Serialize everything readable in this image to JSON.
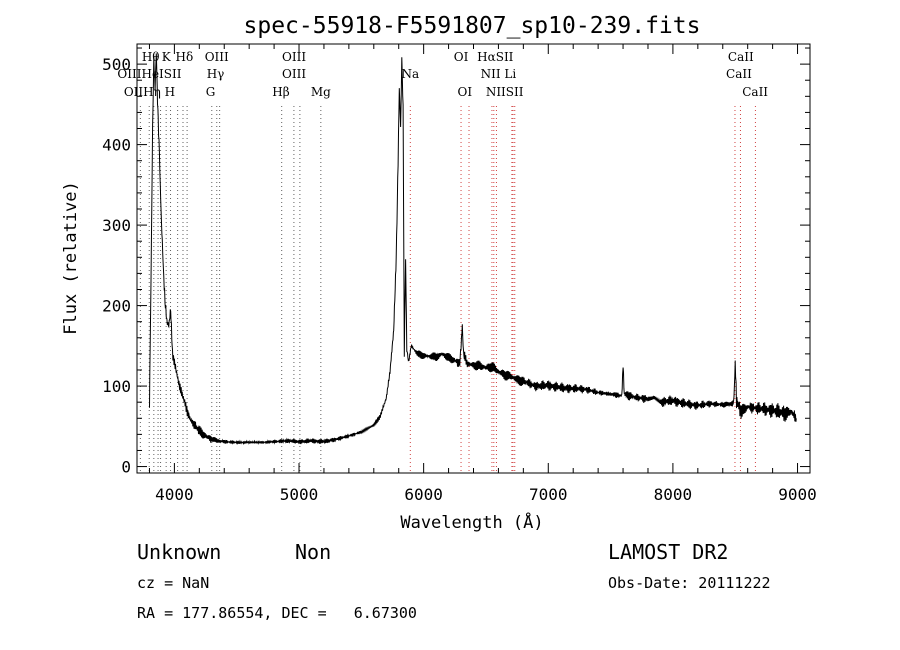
{
  "chart_data": {
    "type": "line",
    "title": "spec-55918-F5591807_sp10-239.fits",
    "xlabel": "Wavelength (Å)",
    "ylabel": "Flux (relative)",
    "xlim": [
      3700,
      9100
    ],
    "ylim": [
      -8,
      525
    ],
    "xticks": [
      4000,
      5000,
      6000,
      7000,
      8000,
      9000
    ],
    "yticks": [
      0,
      100,
      200,
      300,
      400,
      500
    ],
    "grid": false,
    "legend": "none",
    "series": [
      {
        "color": "#000000",
        "x": [
          3800,
          3812,
          3825,
          3835,
          3845,
          3855,
          3862,
          3870,
          3880,
          3890,
          3900,
          3912,
          3925,
          3940,
          3955,
          3970,
          3985,
          4000,
          4020,
          4040,
          4060,
          4080,
          4100,
          4130,
          4160,
          4200,
          4250,
          4300,
          4350,
          4400,
          4500,
          4600,
          4700,
          4800,
          4900,
          5000,
          5100,
          5200,
          5300,
          5400,
          5500,
          5550,
          5600,
          5650,
          5700,
          5730,
          5760,
          5780,
          5795,
          5805,
          5815,
          5825,
          5835,
          5845,
          5855,
          5865,
          5880,
          5900,
          5950,
          6000,
          6050,
          6100,
          6150,
          6200,
          6250,
          6290,
          6300,
          6310,
          6320,
          6350,
          6400,
          6450,
          6500,
          6550,
          6600,
          6650,
          6700,
          6750,
          6800,
          6900,
          7000,
          7100,
          7200,
          7300,
          7400,
          7500,
          7590,
          7600,
          7610,
          7700,
          7800,
          7850,
          7900,
          8000,
          8100,
          8200,
          8300,
          8400,
          8480,
          8490,
          8500,
          8510,
          8550,
          8600,
          8700,
          8800,
          8900,
          8950,
          8990
        ],
        "y": [
          75,
          230,
          420,
          505,
          470,
          515,
          470,
          430,
          390,
          330,
          290,
          245,
          205,
          180,
          175,
          195,
          140,
          130,
          115,
          100,
          90,
          82,
          70,
          58,
          52,
          44,
          38,
          34,
          32,
          31,
          30,
          30,
          30,
          31,
          32,
          31,
          32,
          31,
          34,
          38,
          43,
          47,
          52,
          62,
          85,
          118,
          170,
          260,
          380,
          470,
          420,
          505,
          445,
          140,
          260,
          145,
          130,
          150,
          140,
          138,
          137,
          136,
          140,
          135,
          132,
          128,
          150,
          175,
          140,
          128,
          126,
          125,
          123,
          124,
          118,
          114,
          112,
          108,
          106,
          100,
          101,
          98,
          97,
          96,
          92,
          90,
          88,
          125,
          90,
          86,
          84,
          86,
          80,
          82,
          78,
          76,
          78,
          77,
          78,
          85,
          130,
          82,
          68,
          74,
          72,
          70,
          66,
          68,
          60
        ]
      }
    ],
    "lines": {
      "row1": [
        "Hθ",
        "K",
        "Hδ",
        "OIII",
        "OIII",
        "OI",
        "HαSII",
        "CaII"
      ],
      "row2": [
        "OIIIHeISII",
        "Hγ",
        "OIII",
        "Na",
        "NII Li",
        "CaII"
      ],
      "row3": [
        "OIIHη H",
        "G",
        "Hβ",
        "Mg",
        "OI",
        "NIISII",
        "CaII"
      ]
    },
    "line_wavelengths": [
      3727,
      3798,
      3835,
      3869,
      3889,
      3934,
      3969,
      4026,
      4069,
      4102,
      4300,
      4340,
      4363,
      4861,
      4959,
      5007,
      5175,
      5893,
      6300,
      6364,
      6548,
      6563,
      6584,
      6708,
      6717,
      6731,
      8498,
      8542,
      8662
    ]
  },
  "info": {
    "object_class": "Unknown",
    "subclass": "Non",
    "survey": "LAMOST DR2",
    "redshift": "cz = NaN",
    "obs_date": "Obs-Date: 20111222",
    "coords": "RA = 177.86554, DEC =   6.67300"
  }
}
